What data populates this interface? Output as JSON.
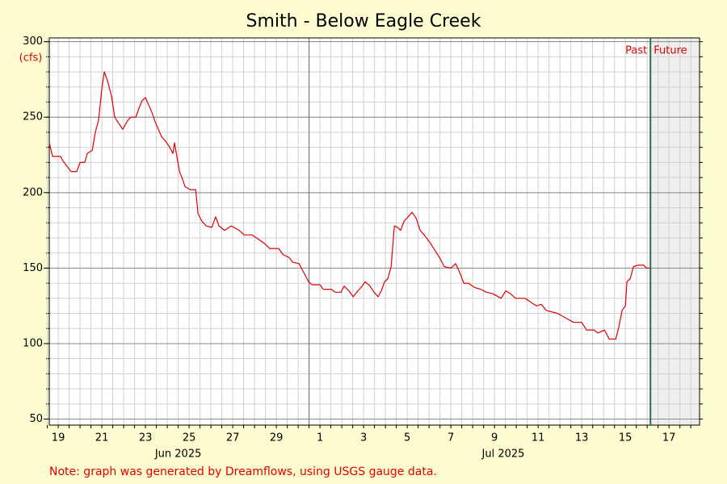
{
  "chart_data": {
    "type": "line",
    "title": "Smith - Below Eagle Creek",
    "y_unit_label": "(cfs)",
    "note": "Note: graph was generated by Dreamflows, using USGS gauge data.",
    "past_label": "Past",
    "future_label": "Future",
    "now_x": 46.65,
    "xlim": [
      19.09,
      48.9
    ],
    "ylim": [
      46,
      302.5
    ],
    "yticks": [
      50,
      100,
      150,
      200,
      250,
      300
    ],
    "yminor_ticks": [
      50,
      60,
      70,
      80,
      90,
      100,
      110,
      120,
      130,
      140,
      150,
      160,
      170,
      180,
      190,
      200,
      210,
      220,
      230,
      240,
      250,
      260,
      270,
      280,
      290,
      300
    ],
    "xticks": [
      {
        "value": 19.5,
        "label": "19"
      },
      {
        "value": 21.5,
        "label": "21"
      },
      {
        "value": 23.5,
        "label": "23"
      },
      {
        "value": 25.5,
        "label": "25"
      },
      {
        "value": 27.5,
        "label": "27"
      },
      {
        "value": 29.5,
        "label": "29"
      },
      {
        "value": 31.5,
        "label": "1"
      },
      {
        "value": 33.5,
        "label": "3"
      },
      {
        "value": 35.5,
        "label": "5"
      },
      {
        "value": 37.5,
        "label": "7"
      },
      {
        "value": 39.5,
        "label": "9"
      },
      {
        "value": 41.5,
        "label": "11"
      },
      {
        "value": 43.5,
        "label": "13"
      },
      {
        "value": 45.5,
        "label": "15"
      },
      {
        "value": 47.5,
        "label": "17"
      }
    ],
    "month_ticks": [
      {
        "value": 25.0,
        "label": "Jun 2025"
      },
      {
        "value": 39.9,
        "label": "Jul 2025"
      }
    ],
    "xminor_ticks": [
      19,
      19.5,
      20,
      20.5,
      21,
      21.5,
      22,
      22.5,
      23,
      23.5,
      24,
      24.5,
      25,
      25.5,
      26,
      26.5,
      27,
      27.5,
      28,
      28.5,
      29,
      29.5,
      30,
      30.5,
      31,
      31.5,
      32,
      32.5,
      33,
      33.5,
      34,
      34.5,
      35,
      35.5,
      36,
      36.5,
      37,
      37.5,
      38,
      38.5,
      39,
      39.5,
      40,
      40.5,
      41,
      41.5,
      42,
      42.5,
      43,
      43.5,
      44,
      44.5,
      45,
      45.5,
      46,
      46.5,
      47,
      47.5,
      48,
      48.5
    ],
    "xgrid_major": [
      31
    ],
    "grid": true,
    "series": [
      {
        "name": "Flow",
        "color": "#e00000",
        "x": [
          19.09,
          19.24,
          19.61,
          19.72,
          19.87,
          20.09,
          20.35,
          20.5,
          20.72,
          20.83,
          21.06,
          21.2,
          21.35,
          21.5,
          21.61,
          21.76,
          21.94,
          22.09,
          22.31,
          22.46,
          22.69,
          22.83,
          23.06,
          23.2,
          23.35,
          23.5,
          23.65,
          23.8,
          23.94,
          24.09,
          24.24,
          24.43,
          24.61,
          24.76,
          24.83,
          24.94,
          25.06,
          25.2,
          25.31,
          25.54,
          25.8,
          25.91,
          26.09,
          26.28,
          26.54,
          26.72,
          26.87,
          27.13,
          27.43,
          27.8,
          28.02,
          28.39,
          28.69,
          28.98,
          29.2,
          29.61,
          29.8,
          30.09,
          30.24,
          30.54,
          30.76,
          30.98,
          31.13,
          31.5,
          31.65,
          32.02,
          32.2,
          32.46,
          32.61,
          32.83,
          33.02,
          33.24,
          33.43,
          33.57,
          33.8,
          33.98,
          34.17,
          34.31,
          34.46,
          34.61,
          34.76,
          34.91,
          35.06,
          35.2,
          35.35,
          35.54,
          35.72,
          35.91,
          36.09,
          36.28,
          36.54,
          36.76,
          36.98,
          37.2,
          37.5,
          37.72,
          37.94,
          38.09,
          38.31,
          38.61,
          38.87,
          39.13,
          39.43,
          39.8,
          40.02,
          40.24,
          40.46,
          40.91,
          41.2,
          41.43,
          41.65,
          41.87,
          42.39,
          42.76,
          43.13,
          43.5,
          43.72,
          44.06,
          44.24,
          44.54,
          44.76,
          45.06,
          45.2,
          45.35,
          45.5,
          45.57,
          45.72,
          45.87,
          46.09,
          46.35,
          46.46,
          46.65
        ],
        "values": [
          233,
          224,
          224,
          221,
          218,
          214,
          214,
          220,
          220,
          226,
          228,
          240,
          248,
          269,
          280,
          274,
          264,
          250,
          245,
          242,
          248,
          250,
          250,
          256,
          261,
          263,
          258,
          253,
          247,
          242,
          237,
          234,
          230,
          226,
          233,
          224,
          214,
          209,
          204,
          202,
          202,
          186,
          181,
          178,
          177,
          184,
          178,
          175,
          178,
          175,
          172,
          172,
          169,
          166,
          163,
          163,
          159,
          157,
          154,
          153,
          147,
          141,
          139,
          139,
          136,
          136,
          134,
          134,
          138,
          135,
          131,
          135,
          138,
          141,
          138,
          134,
          131,
          135,
          141,
          143,
          151,
          178,
          177,
          175,
          181,
          184,
          187,
          183,
          175,
          172,
          167,
          162,
          157,
          151,
          150,
          153,
          146,
          140,
          140,
          137,
          136,
          134,
          133,
          130,
          135,
          133,
          130,
          130,
          127,
          125,
          126,
          122,
          120,
          117,
          114,
          114,
          109,
          109,
          107,
          109,
          103,
          103,
          111,
          122,
          125,
          141,
          143,
          151,
          152,
          152,
          150,
          150
        ]
      }
    ]
  }
}
